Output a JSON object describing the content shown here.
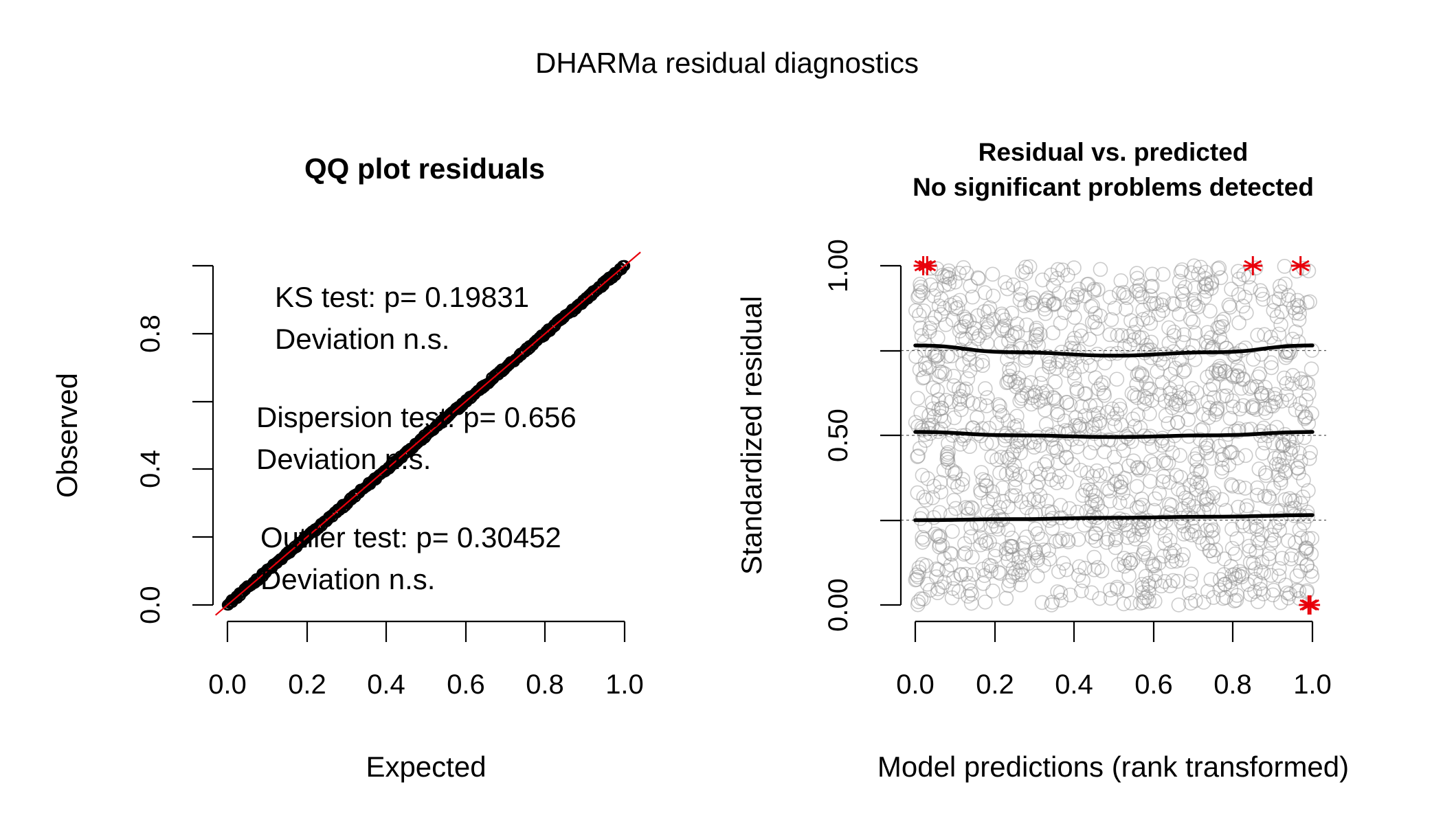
{
  "figure_title": "DHARMa residual diagnostics",
  "colors": {
    "accent": "#e8000b",
    "points": "#8c8c8c",
    "quantile_lines": "#000000"
  },
  "chart_data": [
    {
      "type": "scatter",
      "title": "QQ plot residuals",
      "xlabel": "Expected",
      "ylabel": "Observed",
      "xlim": [
        0,
        1
      ],
      "ylim": [
        0,
        1
      ],
      "xticks": [
        "0.0",
        "0.2",
        "0.4",
        "0.6",
        "0.8",
        "1.0"
      ],
      "yticks": [
        "0.0",
        "0.4",
        "0.8"
      ],
      "y_minor_tick_values": [
        0.2,
        0.6,
        1.0
      ],
      "reference_line": {
        "from": [
          -0.03,
          -0.03
        ],
        "to": [
          1.04,
          1.04
        ]
      },
      "annotations": [
        {
          "line1": "KS test: p= 0.19831",
          "line2": "Deviation  n.s."
        },
        {
          "line1": "Dispersion test: p= 0.656",
          "line2": "Deviation  n.s."
        },
        {
          "line1": "Outlier test: p= 0.30452",
          "line2": "Deviation  n.s."
        }
      ]
    },
    {
      "type": "scatter",
      "title_line1": "Residual vs. predicted",
      "title_line2": "No significant problems detected",
      "xlabel": "Model predictions (rank transformed)",
      "ylabel": "Standardized residual",
      "xlim": [
        0,
        1
      ],
      "ylim": [
        0,
        1
      ],
      "xticks": [
        "0.0",
        "0.2",
        "0.4",
        "0.6",
        "0.8",
        "1.0"
      ],
      "yticks": [
        "0.00",
        "0.50",
        "1.00"
      ],
      "y_minor_tick_values": [
        0.25,
        0.75
      ],
      "reference_lines": [
        0.25,
        0.5,
        0.75
      ],
      "quantile_curves": [
        {
          "q": 0.25,
          "x": [
            0,
            0.25,
            0.5,
            0.75,
            1
          ],
          "y": [
            0.25,
            0.253,
            0.257,
            0.26,
            0.265
          ]
        },
        {
          "q": 0.5,
          "x": [
            0,
            0.25,
            0.5,
            0.75,
            1
          ],
          "y": [
            0.51,
            0.5,
            0.495,
            0.5,
            0.51
          ]
        },
        {
          "q": 0.75,
          "x": [
            0,
            0.25,
            0.5,
            0.75,
            1
          ],
          "y": [
            0.765,
            0.745,
            0.735,
            0.745,
            0.765
          ]
        }
      ],
      "outliers": [
        {
          "x": 0.02,
          "y": 1.0
        },
        {
          "x": 0.03,
          "y": 1.0
        },
        {
          "x": 0.85,
          "y": 1.0
        },
        {
          "x": 0.97,
          "y": 1.0
        },
        {
          "x": 0.99,
          "y": 0.0
        },
        {
          "x": 0.995,
          "y": 0.0
        }
      ]
    }
  ]
}
